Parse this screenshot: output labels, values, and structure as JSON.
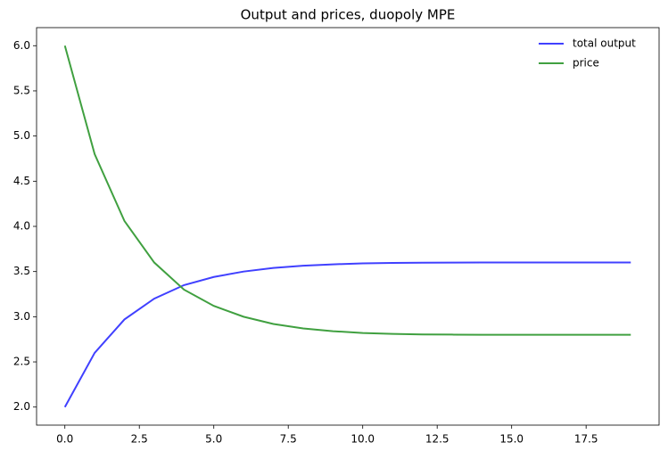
{
  "chart_data": {
    "type": "line",
    "title": "Output and prices, duopoly MPE",
    "x": [
      0,
      1,
      2,
      3,
      4,
      5,
      6,
      7,
      8,
      9,
      10,
      11,
      12,
      13,
      14,
      15,
      16,
      17,
      18,
      19
    ],
    "series": [
      {
        "name": "total output",
        "color": "#4040ff",
        "values": [
          2.0,
          2.6,
          2.97,
          3.2,
          3.35,
          3.44,
          3.5,
          3.54,
          3.565,
          3.58,
          3.59,
          3.595,
          3.598,
          3.599,
          3.6,
          3.6,
          3.6,
          3.6,
          3.6,
          3.6
        ]
      },
      {
        "name": "price",
        "color": "#40a040",
        "values": [
          6.0,
          4.8,
          4.06,
          3.6,
          3.3,
          3.12,
          3.0,
          2.92,
          2.87,
          2.84,
          2.82,
          2.81,
          2.804,
          2.802,
          2.8,
          2.8,
          2.8,
          2.8,
          2.8,
          2.8
        ]
      }
    ],
    "xlim": [
      -0.95,
      19.95
    ],
    "ylim": [
      1.8,
      6.2
    ],
    "xticks": [
      {
        "value": 0,
        "label": "0.0"
      },
      {
        "value": 2.5,
        "label": "2.5"
      },
      {
        "value": 5,
        "label": "5.0"
      },
      {
        "value": 7.5,
        "label": "7.5"
      },
      {
        "value": 10,
        "label": "10.0"
      },
      {
        "value": 12.5,
        "label": "12.5"
      },
      {
        "value": 15,
        "label": "15.0"
      },
      {
        "value": 17.5,
        "label": "17.5"
      }
    ],
    "yticks": [
      {
        "value": 2,
        "label": "2.0"
      },
      {
        "value": 2.5,
        "label": "2.5"
      },
      {
        "value": 3,
        "label": "3.0"
      },
      {
        "value": 3.5,
        "label": "3.5"
      },
      {
        "value": 4,
        "label": "4.0"
      },
      {
        "value": 4.5,
        "label": "4.5"
      },
      {
        "value": 5,
        "label": "5.0"
      },
      {
        "value": 5.5,
        "label": "5.5"
      },
      {
        "value": 6,
        "label": "6.0"
      }
    ],
    "legend": "upper right",
    "grid": false
  }
}
